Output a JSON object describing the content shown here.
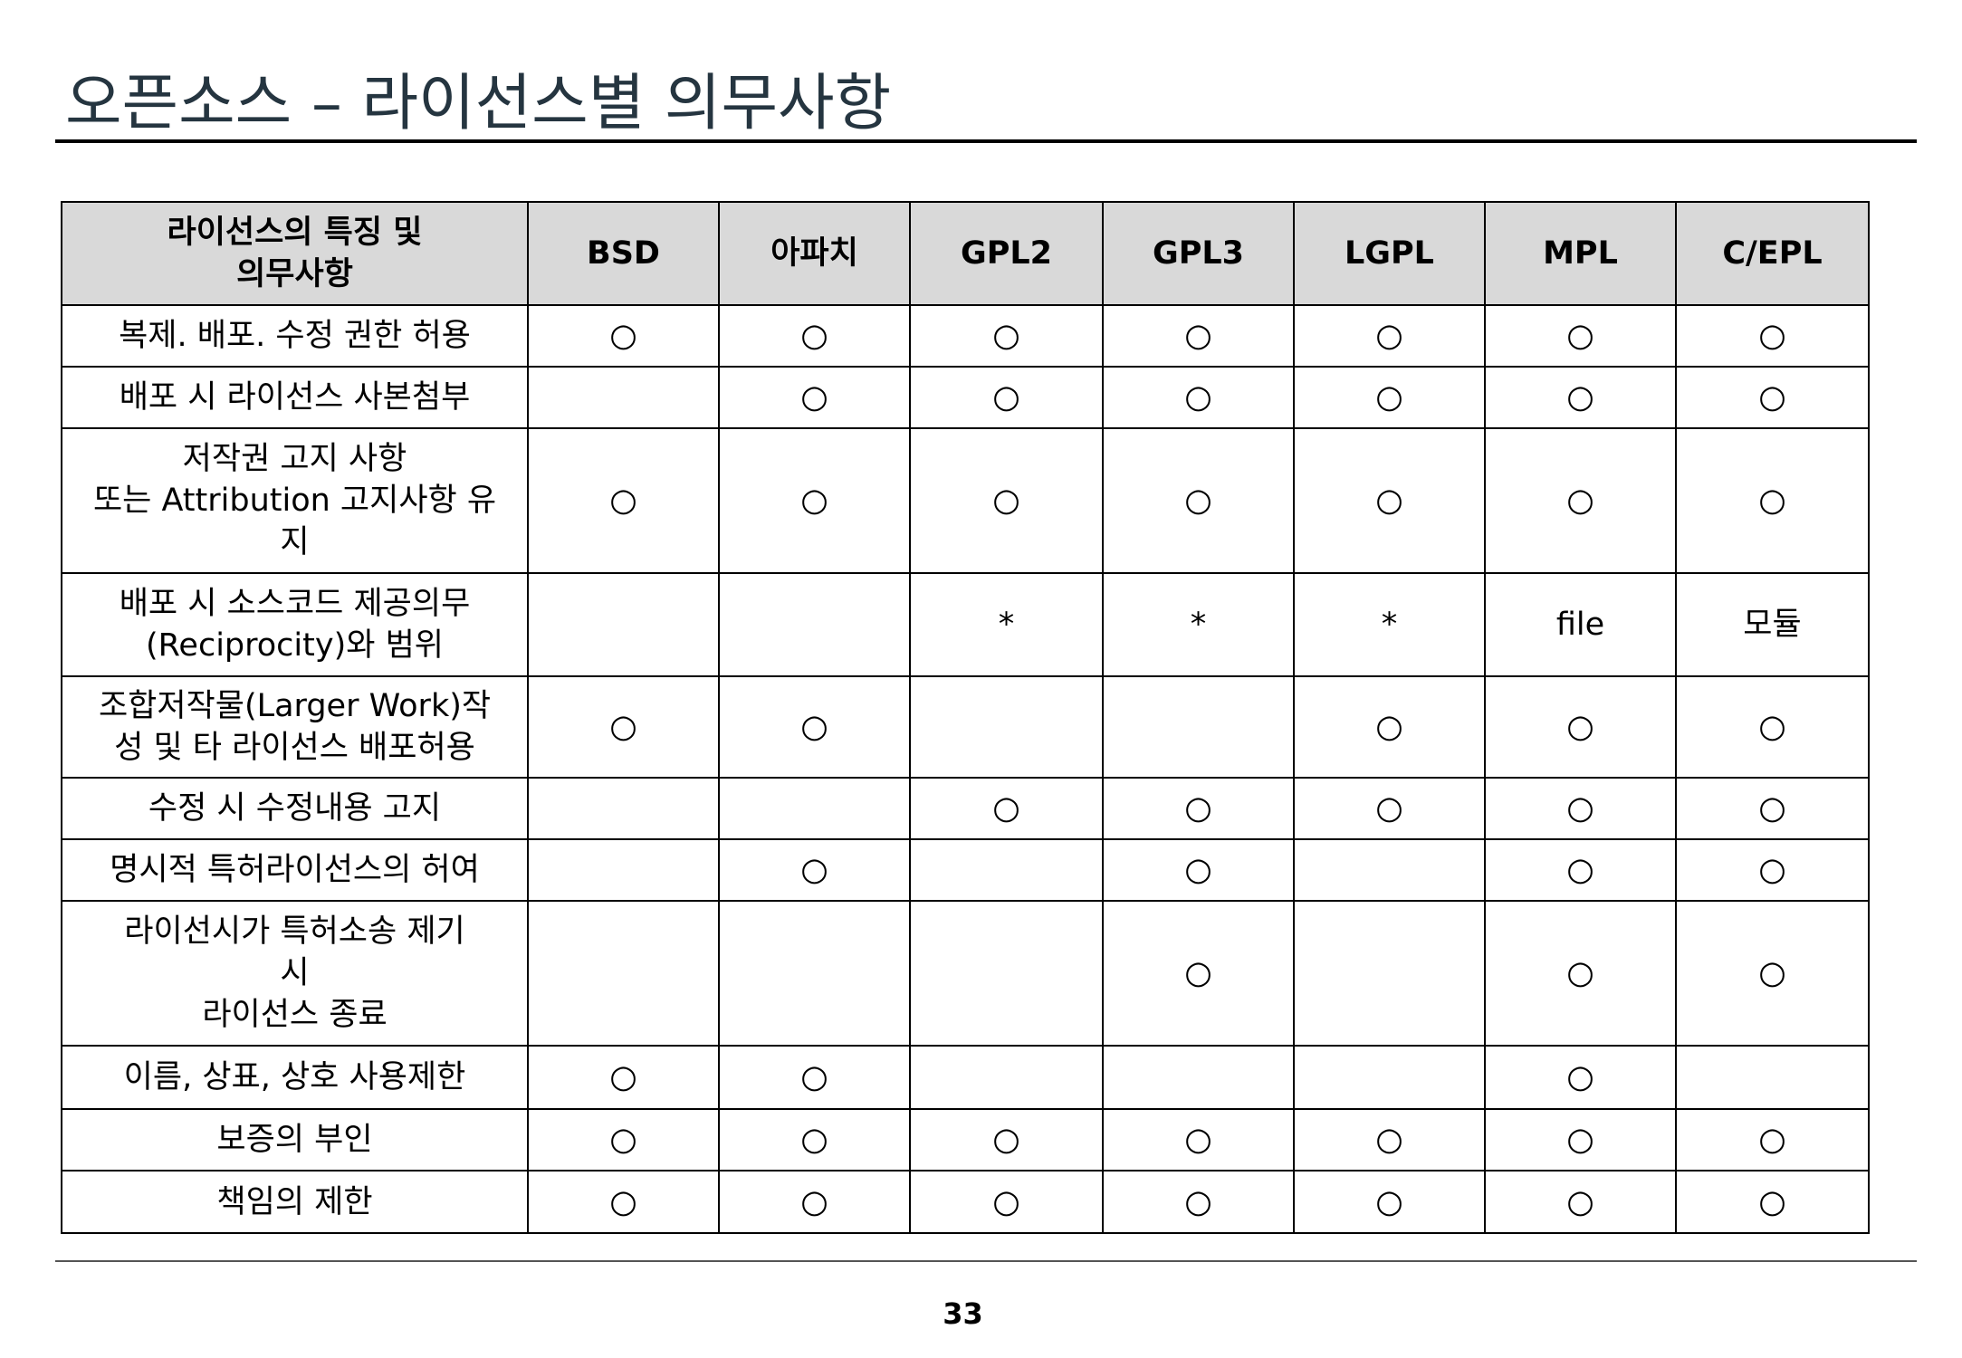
{
  "header": {
    "title": "오픈소스 – 라이선스별 의무사항"
  },
  "table": {
    "columns": [
      "라이선스의 특징 및\n의무사항",
      "BSD",
      "아파치",
      "GPL2",
      "GPL3",
      "LGPL",
      "MPL",
      "C/EPL"
    ],
    "rows": [
      [
        "복제. 배포. 수정 권한 허용",
        "○",
        "○",
        "○",
        "○",
        "○",
        "○",
        "○"
      ],
      [
        "배포 시 라이선스 사본첨부",
        null,
        "○",
        "○",
        "○",
        "○",
        "○",
        "○"
      ],
      [
        "저작권 고지 사항\n또는 Attribution 고지사항 유\n지",
        "○",
        "○",
        "○",
        "○",
        "○",
        "○",
        "○"
      ],
      [
        "배포 시 소스코드 제공의무\n(Reciprocity)와 범위",
        null,
        null,
        "*",
        "*",
        "*",
        "file",
        "모듈"
      ],
      [
        "조합저작물(Larger Work)작\n성 및 타 라이선스 배포허용",
        "○",
        "○",
        null,
        null,
        "○",
        "○",
        "○"
      ],
      [
        "수정 시 수정내용 고지",
        null,
        null,
        "○",
        "○",
        "○",
        "○",
        "○"
      ],
      [
        "명시적 특허라이선스의 허여",
        null,
        "○",
        null,
        "○",
        null,
        "○",
        "○"
      ],
      [
        "라이선시가 특허소송 제기\n시\n라이선스 종료",
        null,
        null,
        null,
        "○",
        null,
        "○",
        "○"
      ],
      [
        "이름, 상표, 상호 사용제한",
        "○",
        "○",
        null,
        null,
        null,
        "○",
        null
      ],
      [
        "보증의 부인",
        "○",
        "○",
        "○",
        "○",
        "○",
        "○",
        "○"
      ],
      [
        "책임의 제한",
        "○",
        "○",
        "○",
        "○",
        "○",
        "○",
        "○"
      ]
    ]
  },
  "footer": {
    "page": "33"
  }
}
